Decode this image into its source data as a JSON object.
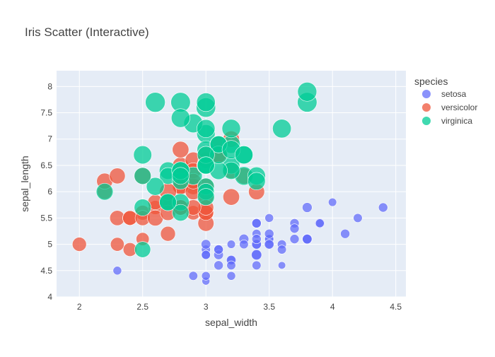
{
  "chart_data": {
    "type": "scatter",
    "title": "Iris Scatter (Interactive)",
    "xlabel": "sepal_width",
    "ylabel": "sepal_length",
    "xlim": [
      1.82,
      4.58
    ],
    "ylim": [
      4.0,
      8.3
    ],
    "x_ticks": [
      2,
      2.5,
      3,
      3.5,
      4,
      4.5
    ],
    "x_tick_labels": [
      "2",
      "2.5",
      "3",
      "3.5",
      "4",
      "4.5"
    ],
    "y_ticks": [
      4,
      4.5,
      5,
      5.5,
      6,
      6.5,
      7,
      7.5,
      8
    ],
    "y_tick_labels": [
      "4",
      "4.5",
      "5",
      "5.5",
      "6",
      "6.5",
      "7",
      "7.5",
      "8"
    ],
    "grid": true,
    "legend": {
      "title": "species",
      "placement": "right"
    },
    "size_encoded_by": "petal_length",
    "background_color": "#e5ecf6",
    "series": [
      {
        "name": "setosa",
        "color": "#636efa",
        "points": [
          [
            3.5,
            5.1,
            1.4
          ],
          [
            3.0,
            4.9,
            1.4
          ],
          [
            3.2,
            4.7,
            1.3
          ],
          [
            3.1,
            4.6,
            1.5
          ],
          [
            3.6,
            5.0,
            1.4
          ],
          [
            3.9,
            5.4,
            1.7
          ],
          [
            3.4,
            4.6,
            1.4
          ],
          [
            3.4,
            5.0,
            1.5
          ],
          [
            2.9,
            4.4,
            1.4
          ],
          [
            3.1,
            4.9,
            1.5
          ],
          [
            3.7,
            5.4,
            1.5
          ],
          [
            3.4,
            4.8,
            1.6
          ],
          [
            3.0,
            4.8,
            1.4
          ],
          [
            3.0,
            4.3,
            1.1
          ],
          [
            4.0,
            5.8,
            1.2
          ],
          [
            4.4,
            5.7,
            1.5
          ],
          [
            3.9,
            5.4,
            1.3
          ],
          [
            3.5,
            5.1,
            1.4
          ],
          [
            3.8,
            5.7,
            1.7
          ],
          [
            3.8,
            5.1,
            1.5
          ],
          [
            3.4,
            5.4,
            1.7
          ],
          [
            3.7,
            5.1,
            1.5
          ],
          [
            3.6,
            4.6,
            1.0
          ],
          [
            3.3,
            5.1,
            1.7
          ],
          [
            3.4,
            4.8,
            1.9
          ],
          [
            3.0,
            5.0,
            1.6
          ],
          [
            3.4,
            5.0,
            1.6
          ],
          [
            3.5,
            5.2,
            1.5
          ],
          [
            3.4,
            5.2,
            1.4
          ],
          [
            3.2,
            4.7,
            1.6
          ],
          [
            3.1,
            4.8,
            1.6
          ],
          [
            3.4,
            5.4,
            1.5
          ],
          [
            4.1,
            5.2,
            1.5
          ],
          [
            4.2,
            5.5,
            1.4
          ],
          [
            3.1,
            4.9,
            1.5
          ],
          [
            3.2,
            5.0,
            1.2
          ],
          [
            3.5,
            5.5,
            1.3
          ],
          [
            3.6,
            4.9,
            1.4
          ],
          [
            3.0,
            4.4,
            1.3
          ],
          [
            3.4,
            5.1,
            1.5
          ],
          [
            3.5,
            5.0,
            1.3
          ],
          [
            2.3,
            4.5,
            1.3
          ],
          [
            3.2,
            4.4,
            1.3
          ],
          [
            3.5,
            5.0,
            1.6
          ],
          [
            3.8,
            5.1,
            1.9
          ],
          [
            3.0,
            4.8,
            1.4
          ],
          [
            3.8,
            5.1,
            1.6
          ],
          [
            3.2,
            4.6,
            1.4
          ],
          [
            3.7,
            5.3,
            1.5
          ],
          [
            3.3,
            5.0,
            1.4
          ]
        ]
      },
      {
        "name": "versicolor",
        "color": "#ef553b",
        "points": [
          [
            3.2,
            7.0,
            4.7
          ],
          [
            3.2,
            6.4,
            4.5
          ],
          [
            3.1,
            6.9,
            4.9
          ],
          [
            2.3,
            5.5,
            4.0
          ],
          [
            2.8,
            6.5,
            4.6
          ],
          [
            2.8,
            5.7,
            4.5
          ],
          [
            3.3,
            6.3,
            4.7
          ],
          [
            2.4,
            4.9,
            3.3
          ],
          [
            2.9,
            6.6,
            4.6
          ],
          [
            2.7,
            5.2,
            3.9
          ],
          [
            2.0,
            5.0,
            3.5
          ],
          [
            3.0,
            5.9,
            4.2
          ],
          [
            2.2,
            6.0,
            4.0
          ],
          [
            2.9,
            6.1,
            4.7
          ],
          [
            2.9,
            5.6,
            3.6
          ],
          [
            3.1,
            6.7,
            4.4
          ],
          [
            3.0,
            5.6,
            4.5
          ],
          [
            2.7,
            5.8,
            4.1
          ],
          [
            2.2,
            6.2,
            4.5
          ],
          [
            2.5,
            5.6,
            3.9
          ],
          [
            3.2,
            5.9,
            4.8
          ],
          [
            2.8,
            6.1,
            4.0
          ],
          [
            2.5,
            6.3,
            4.9
          ],
          [
            2.8,
            6.1,
            4.7
          ],
          [
            2.9,
            6.4,
            4.3
          ],
          [
            3.0,
            6.6,
            4.4
          ],
          [
            2.8,
            6.8,
            4.8
          ],
          [
            3.0,
            6.7,
            5.0
          ],
          [
            2.9,
            6.0,
            4.5
          ],
          [
            2.6,
            5.7,
            3.5
          ],
          [
            2.4,
            5.5,
            3.8
          ],
          [
            2.4,
            5.5,
            3.7
          ],
          [
            2.7,
            5.8,
            3.9
          ],
          [
            2.7,
            6.0,
            5.1
          ],
          [
            3.0,
            5.4,
            4.5
          ],
          [
            3.4,
            6.0,
            4.5
          ],
          [
            3.1,
            6.7,
            4.7
          ],
          [
            2.3,
            6.3,
            4.4
          ],
          [
            3.0,
            5.6,
            4.1
          ],
          [
            2.5,
            5.5,
            4.0
          ],
          [
            2.6,
            5.5,
            4.4
          ],
          [
            3.0,
            6.1,
            4.6
          ],
          [
            2.6,
            5.8,
            4.0
          ],
          [
            2.3,
            5.0,
            3.3
          ],
          [
            2.7,
            5.6,
            4.2
          ],
          [
            3.0,
            5.7,
            4.2
          ],
          [
            2.9,
            5.7,
            4.2
          ],
          [
            2.9,
            6.2,
            4.3
          ],
          [
            2.5,
            5.1,
            3.0
          ],
          [
            2.8,
            5.7,
            4.1
          ]
        ]
      },
      {
        "name": "virginica",
        "color": "#00cc96",
        "points": [
          [
            3.3,
            6.3,
            6.0
          ],
          [
            2.7,
            5.8,
            5.1
          ],
          [
            3.0,
            7.1,
            5.9
          ],
          [
            2.9,
            6.3,
            5.6
          ],
          [
            3.0,
            6.5,
            5.8
          ],
          [
            3.0,
            7.6,
            6.6
          ],
          [
            2.5,
            4.9,
            4.5
          ],
          [
            2.9,
            7.3,
            6.3
          ],
          [
            2.5,
            6.7,
            5.8
          ],
          [
            3.6,
            7.2,
            6.1
          ],
          [
            3.2,
            6.5,
            5.1
          ],
          [
            2.7,
            6.4,
            5.3
          ],
          [
            3.0,
            6.8,
            5.5
          ],
          [
            2.5,
            5.7,
            5.0
          ],
          [
            2.8,
            5.8,
            5.1
          ],
          [
            3.2,
            6.4,
            5.3
          ],
          [
            3.0,
            6.5,
            5.5
          ],
          [
            3.8,
            7.7,
            6.7
          ],
          [
            2.6,
            7.7,
            6.9
          ],
          [
            2.2,
            6.0,
            5.0
          ],
          [
            3.2,
            6.9,
            5.7
          ],
          [
            2.8,
            5.6,
            4.9
          ],
          [
            2.8,
            7.7,
            6.7
          ],
          [
            2.7,
            6.3,
            4.9
          ],
          [
            3.3,
            6.7,
            5.7
          ],
          [
            3.2,
            7.2,
            6.0
          ],
          [
            2.8,
            6.2,
            4.8
          ],
          [
            3.0,
            6.1,
            4.9
          ],
          [
            2.8,
            6.4,
            5.6
          ],
          [
            3.0,
            7.2,
            5.8
          ],
          [
            2.8,
            7.4,
            6.1
          ],
          [
            3.8,
            7.9,
            6.4
          ],
          [
            2.8,
            6.4,
            5.6
          ],
          [
            2.8,
            6.3,
            5.1
          ],
          [
            2.6,
            6.1,
            5.6
          ],
          [
            3.0,
            7.7,
            6.1
          ],
          [
            3.4,
            6.3,
            5.6
          ],
          [
            3.1,
            6.4,
            5.5
          ],
          [
            3.0,
            6.0,
            4.8
          ],
          [
            3.1,
            6.9,
            5.4
          ],
          [
            3.1,
            6.7,
            5.6
          ],
          [
            3.1,
            6.9,
            5.1
          ],
          [
            2.7,
            5.8,
            5.1
          ],
          [
            3.2,
            6.8,
            5.9
          ],
          [
            3.3,
            6.7,
            5.7
          ],
          [
            3.0,
            6.7,
            5.2
          ],
          [
            2.5,
            6.3,
            5.0
          ],
          [
            3.0,
            6.5,
            5.2
          ],
          [
            3.4,
            6.2,
            5.4
          ],
          [
            3.0,
            5.9,
            5.1
          ]
        ]
      }
    ]
  }
}
